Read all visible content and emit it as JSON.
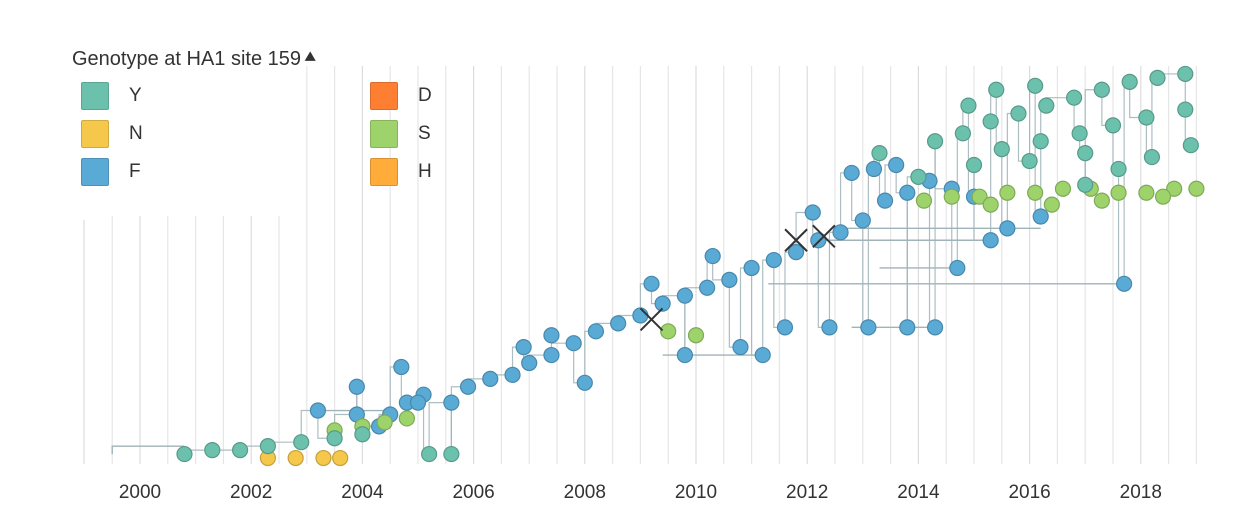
{
  "legend": {
    "title": "Genotype at HA1 site 159",
    "collapse_icon": "chevron-up-icon",
    "items": [
      {
        "label": "Y",
        "color": "#6cc1ad"
      },
      {
        "label": "N",
        "color": "#f5c84c"
      },
      {
        "label": "F",
        "color": "#5aaad6"
      },
      {
        "label": "D",
        "color": "#ff7f32"
      },
      {
        "label": "S",
        "color": "#9ed36c"
      },
      {
        "label": "H",
        "color": "#ffac3b"
      }
    ]
  },
  "chart_data": {
    "type": "scatter",
    "title": "",
    "xlabel": "",
    "ylabel": "",
    "xlim": [
      1999.5,
      2019.3
    ],
    "ylim": [
      0,
      100
    ],
    "x_ticks": [
      2000,
      2002,
      2004,
      2006,
      2008,
      2010,
      2012,
      2014,
      2016,
      2018
    ],
    "grid": true,
    "legend_position": "top-left",
    "colors": {
      "Y": "#6cc1ad",
      "N": "#f5c84c",
      "F": "#5aaad6",
      "S": "#9ed36c",
      "branch": "#9fb3b8",
      "marker": "#333333"
    },
    "series": [
      {
        "name": "F",
        "points": [
          [
            2003.2,
            13
          ],
          [
            2003.9,
            12
          ],
          [
            2004.3,
            9
          ],
          [
            2004.5,
            12
          ],
          [
            2004.8,
            15
          ],
          [
            2005.1,
            17
          ],
          [
            2005.6,
            15
          ],
          [
            2005.9,
            19
          ],
          [
            2006.3,
            21
          ],
          [
            2006.7,
            22
          ],
          [
            2007.0,
            25
          ],
          [
            2007.4,
            27
          ],
          [
            2007.8,
            30
          ],
          [
            2008.2,
            33
          ],
          [
            2008.6,
            35
          ],
          [
            2009.0,
            37
          ],
          [
            2009.4,
            40
          ],
          [
            2009.8,
            42
          ],
          [
            2010.2,
            44
          ],
          [
            2010.6,
            46
          ],
          [
            2011.0,
            49
          ],
          [
            2011.4,
            51
          ],
          [
            2011.8,
            53
          ],
          [
            2012.2,
            56
          ],
          [
            2012.6,
            58
          ],
          [
            2013.0,
            61
          ],
          [
            2013.4,
            66
          ],
          [
            2013.8,
            68
          ],
          [
            2014.2,
            71
          ],
          [
            2014.6,
            69
          ],
          [
            2015.0,
            67
          ],
          [
            2015.6,
            59
          ],
          [
            2016.2,
            62
          ],
          [
            2013.2,
            74
          ],
          [
            2013.6,
            75
          ],
          [
            2012.8,
            73
          ],
          [
            2011.6,
            34
          ],
          [
            2012.4,
            34
          ],
          [
            2013.1,
            34
          ],
          [
            2013.8,
            34
          ],
          [
            2014.3,
            34
          ],
          [
            2010.8,
            29
          ],
          [
            2009.8,
            27
          ],
          [
            2011.2,
            27
          ],
          [
            2014.7,
            49
          ],
          [
            2017.7,
            45
          ],
          [
            2015.3,
            56
          ],
          [
            2005.0,
            15
          ],
          [
            2007.4,
            32
          ],
          [
            2008.0,
            20
          ],
          [
            2003.9,
            19
          ],
          [
            2004.7,
            24
          ],
          [
            2006.9,
            29
          ],
          [
            2009.2,
            45
          ],
          [
            2010.3,
            52
          ],
          [
            2012.1,
            63
          ]
        ]
      },
      {
        "name": "Y",
        "points": [
          [
            2000.8,
            2
          ],
          [
            2001.3,
            3
          ],
          [
            2001.8,
            3
          ],
          [
            2002.3,
            4
          ],
          [
            2002.9,
            5
          ],
          [
            2003.5,
            6
          ],
          [
            2004.0,
            7
          ],
          [
            2005.2,
            2
          ],
          [
            2005.6,
            2
          ],
          [
            2014.3,
            81
          ],
          [
            2014.8,
            83
          ],
          [
            2015.3,
            86
          ],
          [
            2015.8,
            88
          ],
          [
            2016.3,
            90
          ],
          [
            2016.8,
            92
          ],
          [
            2017.3,
            94
          ],
          [
            2017.8,
            96
          ],
          [
            2018.3,
            97
          ],
          [
            2018.8,
            98
          ],
          [
            2015.5,
            79
          ],
          [
            2016.2,
            81
          ],
          [
            2016.9,
            83
          ],
          [
            2017.5,
            85
          ],
          [
            2018.1,
            87
          ],
          [
            2018.8,
            89
          ],
          [
            2015.0,
            75
          ],
          [
            2016.0,
            76
          ],
          [
            2017.0,
            78
          ],
          [
            2017.6,
            74
          ],
          [
            2018.2,
            77
          ],
          [
            2018.9,
            80
          ],
          [
            2014.0,
            72
          ],
          [
            2017.0,
            70
          ],
          [
            2014.9,
            90
          ],
          [
            2015.4,
            94
          ],
          [
            2016.1,
            95
          ],
          [
            2013.3,
            78
          ]
        ]
      },
      {
        "name": "S",
        "points": [
          [
            2014.1,
            66
          ],
          [
            2014.6,
            67
          ],
          [
            2015.1,
            67
          ],
          [
            2015.6,
            68
          ],
          [
            2016.1,
            68
          ],
          [
            2016.6,
            69
          ],
          [
            2017.1,
            69
          ],
          [
            2017.6,
            68
          ],
          [
            2018.1,
            68
          ],
          [
            2018.6,
            69
          ],
          [
            2019.0,
            69
          ],
          [
            2015.3,
            65
          ],
          [
            2016.4,
            65
          ],
          [
            2017.3,
            66
          ],
          [
            2018.4,
            67
          ],
          [
            2003.5,
            8
          ],
          [
            2004.0,
            9
          ],
          [
            2004.4,
            10
          ],
          [
            2004.8,
            11
          ],
          [
            2009.5,
            33
          ],
          [
            2010.0,
            32
          ]
        ]
      },
      {
        "name": "N",
        "points": [
          [
            2002.3,
            1
          ],
          [
            2002.8,
            1
          ],
          [
            2003.3,
            1
          ],
          [
            2003.6,
            1
          ]
        ]
      }
    ],
    "annotations": [
      {
        "type": "x-marker",
        "x": 2009.2,
        "y": 36
      },
      {
        "type": "x-marker",
        "x": 2011.8,
        "y": 56
      },
      {
        "type": "x-marker",
        "x": 2012.3,
        "y": 57
      }
    ]
  }
}
